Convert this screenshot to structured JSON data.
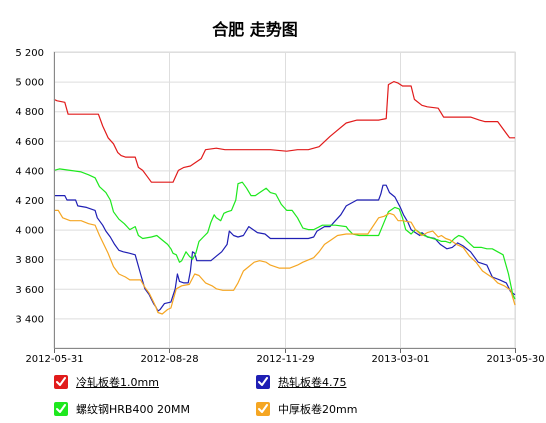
{
  "chart_data": {
    "type": "line",
    "title": "合肥 走势图",
    "x_ticks": [
      "2012-05-31",
      "2012-08-28",
      "2012-11-29",
      "2013-03-01",
      "2013-05-30"
    ],
    "y_ticks": [
      "3 400",
      "3 600",
      "3 800",
      "4 000",
      "4 200",
      "4 400",
      "4 600",
      "4 800",
      "5 000",
      "5 200"
    ],
    "ylim": [
      3200,
      5200
    ],
    "grid": true,
    "legend_position": "bottom",
    "series": [
      {
        "name": "冷轧板卷1.0mm",
        "color": "#e11b1b",
        "points": [
          [
            0,
            4880
          ],
          [
            3,
            4870
          ],
          [
            10,
            4860
          ],
          [
            13,
            4780
          ],
          [
            20,
            4780
          ],
          [
            41,
            4780
          ],
          [
            45,
            4700
          ],
          [
            50,
            4620
          ],
          [
            55,
            4580
          ],
          [
            59,
            4520
          ],
          [
            62,
            4500
          ],
          [
            66,
            4490
          ],
          [
            75,
            4490
          ],
          [
            78,
            4420
          ],
          [
            82,
            4400
          ],
          [
            86,
            4360
          ],
          [
            90,
            4320
          ],
          [
            100,
            4320
          ],
          [
            110,
            4320
          ],
          [
            115,
            4400
          ],
          [
            120,
            4420
          ],
          [
            126,
            4430
          ],
          [
            136,
            4480
          ],
          [
            140,
            4540
          ],
          [
            150,
            4550
          ],
          [
            158,
            4540
          ],
          [
            170,
            4540
          ],
          [
            185,
            4540
          ],
          [
            200,
            4540
          ],
          [
            215,
            4530
          ],
          [
            225,
            4540
          ],
          [
            235,
            4540
          ],
          [
            245,
            4560
          ],
          [
            255,
            4630
          ],
          [
            260,
            4660
          ],
          [
            270,
            4720
          ],
          [
            280,
            4740
          ],
          [
            300,
            4740
          ],
          [
            307,
            4750
          ],
          [
            309,
            4980
          ],
          [
            314,
            5000
          ],
          [
            318,
            4990
          ],
          [
            322,
            4970
          ],
          [
            330,
            4970
          ],
          [
            333,
            4880
          ],
          [
            340,
            4840
          ],
          [
            345,
            4830
          ],
          [
            355,
            4820
          ],
          [
            360,
            4760
          ],
          [
            365,
            4760
          ],
          [
            385,
            4760
          ],
          [
            393,
            4740
          ],
          [
            398,
            4730
          ],
          [
            410,
            4730
          ],
          [
            414,
            4690
          ],
          [
            418,
            4650
          ],
          [
            421,
            4620
          ],
          [
            426,
            4620
          ]
        ]
      },
      {
        "name": "热轧板卷4.75",
        "color": "#1f1fb4",
        "points": [
          [
            0,
            4230
          ],
          [
            10,
            4230
          ],
          [
            12,
            4200
          ],
          [
            20,
            4200
          ],
          [
            22,
            4160
          ],
          [
            30,
            4150
          ],
          [
            38,
            4130
          ],
          [
            40,
            4080
          ],
          [
            45,
            4030
          ],
          [
            48,
            3990
          ],
          [
            52,
            3950
          ],
          [
            56,
            3900
          ],
          [
            60,
            3860
          ],
          [
            64,
            3850
          ],
          [
            70,
            3840
          ],
          [
            75,
            3830
          ],
          [
            80,
            3700
          ],
          [
            84,
            3600
          ],
          [
            88,
            3560
          ],
          [
            90,
            3530
          ],
          [
            92,
            3500
          ],
          [
            94,
            3480
          ],
          [
            96,
            3450
          ],
          [
            98,
            3460
          ],
          [
            100,
            3480
          ],
          [
            102,
            3500
          ],
          [
            108,
            3510
          ],
          [
            112,
            3600
          ],
          [
            114,
            3700
          ],
          [
            116,
            3650
          ],
          [
            120,
            3640
          ],
          [
            124,
            3640
          ],
          [
            126,
            3720
          ],
          [
            128,
            3850
          ],
          [
            130,
            3840
          ],
          [
            132,
            3790
          ],
          [
            140,
            3790
          ],
          [
            145,
            3790
          ],
          [
            150,
            3820
          ],
          [
            155,
            3850
          ],
          [
            160,
            3900
          ],
          [
            162,
            3990
          ],
          [
            166,
            3960
          ],
          [
            170,
            3950
          ],
          [
            175,
            3960
          ],
          [
            180,
            4020
          ],
          [
            184,
            4000
          ],
          [
            188,
            3980
          ],
          [
            195,
            3970
          ],
          [
            200,
            3940
          ],
          [
            210,
            3940
          ],
          [
            225,
            3940
          ],
          [
            235,
            3940
          ],
          [
            240,
            3950
          ],
          [
            243,
            3990
          ],
          [
            250,
            4020
          ],
          [
            255,
            4020
          ],
          [
            260,
            4060
          ],
          [
            265,
            4100
          ],
          [
            270,
            4160
          ],
          [
            280,
            4200
          ],
          [
            300,
            4200
          ],
          [
            302,
            4240
          ],
          [
            304,
            4300
          ],
          [
            307,
            4300
          ],
          [
            310,
            4250
          ],
          [
            315,
            4220
          ],
          [
            320,
            4150
          ],
          [
            323,
            4100
          ],
          [
            327,
            4050
          ],
          [
            330,
            4000
          ],
          [
            334,
            3980
          ],
          [
            338,
            3960
          ],
          [
            340,
            3980
          ],
          [
            345,
            3950
          ],
          [
            352,
            3940
          ],
          [
            357,
            3900
          ],
          [
            363,
            3870
          ],
          [
            368,
            3880
          ],
          [
            373,
            3910
          ],
          [
            378,
            3890
          ],
          [
            385,
            3850
          ],
          [
            392,
            3780
          ],
          [
            400,
            3760
          ],
          [
            405,
            3680
          ],
          [
            412,
            3660
          ],
          [
            418,
            3640
          ],
          [
            422,
            3580
          ],
          [
            426,
            3560
          ]
        ]
      },
      {
        "name": "螺纹钢HRB400 20MM",
        "color": "#1ee81e",
        "points": [
          [
            0,
            4400
          ],
          [
            5,
            4410
          ],
          [
            15,
            4400
          ],
          [
            25,
            4390
          ],
          [
            32,
            4370
          ],
          [
            38,
            4350
          ],
          [
            42,
            4290
          ],
          [
            48,
            4250
          ],
          [
            52,
            4200
          ],
          [
            55,
            4120
          ],
          [
            60,
            4070
          ],
          [
            65,
            4040
          ],
          [
            70,
            4000
          ],
          [
            75,
            4020
          ],
          [
            78,
            3960
          ],
          [
            82,
            3940
          ],
          [
            90,
            3950
          ],
          [
            95,
            3960
          ],
          [
            100,
            3930
          ],
          [
            105,
            3900
          ],
          [
            108,
            3870
          ],
          [
            110,
            3840
          ],
          [
            113,
            3830
          ],
          [
            116,
            3780
          ],
          [
            118,
            3790
          ],
          [
            122,
            3850
          ],
          [
            125,
            3820
          ],
          [
            128,
            3800
          ],
          [
            131,
            3840
          ],
          [
            134,
            3920
          ],
          [
            138,
            3950
          ],
          [
            142,
            3980
          ],
          [
            145,
            4050
          ],
          [
            148,
            4100
          ],
          [
            150,
            4080
          ],
          [
            154,
            4060
          ],
          [
            157,
            4110
          ],
          [
            160,
            4120
          ],
          [
            164,
            4130
          ],
          [
            168,
            4200
          ],
          [
            170,
            4310
          ],
          [
            174,
            4320
          ],
          [
            178,
            4280
          ],
          [
            182,
            4230
          ],
          [
            186,
            4230
          ],
          [
            190,
            4250
          ],
          [
            196,
            4280
          ],
          [
            200,
            4250
          ],
          [
            205,
            4240
          ],
          [
            210,
            4170
          ],
          [
            215,
            4130
          ],
          [
            220,
            4130
          ],
          [
            225,
            4080
          ],
          [
            230,
            4010
          ],
          [
            235,
            4000
          ],
          [
            240,
            4000
          ],
          [
            248,
            4030
          ],
          [
            260,
            4030
          ],
          [
            270,
            4020
          ],
          [
            272,
            4000
          ],
          [
            276,
            3970
          ],
          [
            282,
            3960
          ],
          [
            290,
            3960
          ],
          [
            300,
            3960
          ],
          [
            305,
            4050
          ],
          [
            309,
            4120
          ],
          [
            315,
            4150
          ],
          [
            319,
            4140
          ],
          [
            322,
            4080
          ],
          [
            325,
            4000
          ],
          [
            330,
            3970
          ],
          [
            334,
            4000
          ],
          [
            338,
            3980
          ],
          [
            342,
            3960
          ],
          [
            346,
            3950
          ],
          [
            350,
            3940
          ],
          [
            355,
            3930
          ],
          [
            358,
            3920
          ],
          [
            362,
            3920
          ],
          [
            366,
            3910
          ],
          [
            370,
            3940
          ],
          [
            374,
            3960
          ],
          [
            378,
            3950
          ],
          [
            382,
            3920
          ],
          [
            388,
            3880
          ],
          [
            395,
            3880
          ],
          [
            400,
            3870
          ],
          [
            405,
            3870
          ],
          [
            410,
            3850
          ],
          [
            415,
            3830
          ],
          [
            420,
            3700
          ],
          [
            424,
            3560
          ],
          [
            426,
            3530
          ]
        ]
      },
      {
        "name": "中厚板卷20mm",
        "color": "#f5a623",
        "points": [
          [
            0,
            4130
          ],
          [
            4,
            4130
          ],
          [
            8,
            4080
          ],
          [
            15,
            4060
          ],
          [
            25,
            4060
          ],
          [
            32,
            4040
          ],
          [
            38,
            4030
          ],
          [
            42,
            3960
          ],
          [
            46,
            3900
          ],
          [
            50,
            3840
          ],
          [
            55,
            3750
          ],
          [
            60,
            3700
          ],
          [
            66,
            3680
          ],
          [
            70,
            3660
          ],
          [
            80,
            3660
          ],
          [
            84,
            3610
          ],
          [
            88,
            3570
          ],
          [
            92,
            3510
          ],
          [
            94,
            3480
          ],
          [
            96,
            3440
          ],
          [
            100,
            3430
          ],
          [
            105,
            3460
          ],
          [
            108,
            3470
          ],
          [
            113,
            3600
          ],
          [
            118,
            3620
          ],
          [
            125,
            3630
          ],
          [
            130,
            3700
          ],
          [
            134,
            3690
          ],
          [
            140,
            3640
          ],
          [
            146,
            3620
          ],
          [
            150,
            3600
          ],
          [
            156,
            3590
          ],
          [
            166,
            3590
          ],
          [
            170,
            3640
          ],
          [
            175,
            3720
          ],
          [
            180,
            3750
          ],
          [
            185,
            3780
          ],
          [
            190,
            3790
          ],
          [
            196,
            3780
          ],
          [
            200,
            3760
          ],
          [
            208,
            3740
          ],
          [
            218,
            3740
          ],
          [
            225,
            3760
          ],
          [
            230,
            3780
          ],
          [
            240,
            3810
          ],
          [
            245,
            3850
          ],
          [
            250,
            3900
          ],
          [
            256,
            3930
          ],
          [
            262,
            3960
          ],
          [
            270,
            3970
          ],
          [
            280,
            3970
          ],
          [
            290,
            3970
          ],
          [
            300,
            4080
          ],
          [
            305,
            4090
          ],
          [
            310,
            4110
          ],
          [
            314,
            4100
          ],
          [
            318,
            4060
          ],
          [
            322,
            4060
          ],
          [
            330,
            4050
          ],
          [
            334,
            4000
          ],
          [
            340,
            3960
          ],
          [
            345,
            3980
          ],
          [
            350,
            3990
          ],
          [
            355,
            3950
          ],
          [
            358,
            3960
          ],
          [
            362,
            3940
          ],
          [
            366,
            3930
          ],
          [
            372,
            3900
          ],
          [
            378,
            3880
          ],
          [
            384,
            3820
          ],
          [
            390,
            3780
          ],
          [
            396,
            3720
          ],
          [
            400,
            3700
          ],
          [
            406,
            3670
          ],
          [
            410,
            3640
          ],
          [
            416,
            3620
          ],
          [
            422,
            3590
          ],
          [
            424,
            3540
          ],
          [
            426,
            3490
          ]
        ]
      }
    ]
  }
}
